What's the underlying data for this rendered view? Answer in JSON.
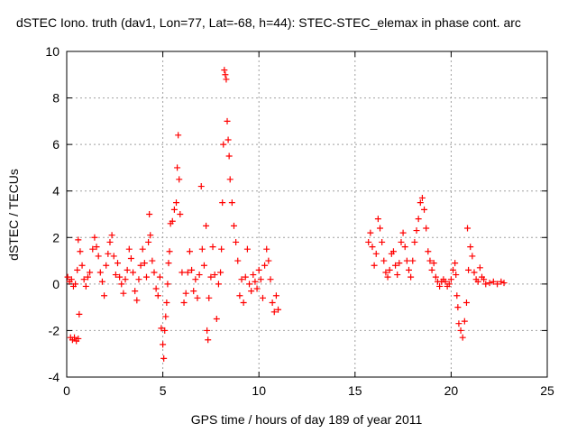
{
  "chart_data": {
    "type": "scatter",
    "title": "dSTEC Iono. truth (dav1, Lon=77, Lat=-68, h=44): STEC-STEC_elemax in phase cont. arc",
    "xlabel": "GPS time / hours of day 189 of year 2011",
    "ylabel": "dSTEC  / TECUs",
    "xlim": [
      0,
      25
    ],
    "ylim": [
      -4,
      10
    ],
    "xticks": [
      0,
      5,
      10,
      15,
      20,
      25
    ],
    "yticks": [
      -4,
      -2,
      0,
      2,
      4,
      6,
      8,
      10
    ],
    "xtick_labels": [
      "0",
      "5",
      "10",
      "15",
      "20",
      "25"
    ],
    "ytick_labels": [
      "-4",
      "-2",
      "0",
      "2",
      "4",
      "6",
      "8",
      "10"
    ],
    "grid": true,
    "legend": "none",
    "marker": "+",
    "color": "#ff0000",
    "series": [
      {
        "points": [
          [
            0.05,
            0.3
          ],
          [
            0.15,
            0.1
          ],
          [
            0.25,
            0.2
          ],
          [
            0.35,
            -0.1
          ],
          [
            0.45,
            0.0
          ],
          [
            0.2,
            -2.3
          ],
          [
            0.3,
            -2.4
          ],
          [
            0.4,
            -2.3
          ],
          [
            0.5,
            -2.45
          ],
          [
            0.6,
            -2.35
          ],
          [
            0.55,
            0.6
          ],
          [
            0.6,
            1.9
          ],
          [
            0.7,
            1.4
          ],
          [
            0.8,
            0.8
          ],
          [
            0.9,
            0.2
          ],
          [
            1.0,
            -0.1
          ],
          [
            1.1,
            0.3
          ],
          [
            0.65,
            -1.3
          ],
          [
            1.2,
            0.5
          ],
          [
            1.35,
            1.5
          ],
          [
            1.45,
            2.0
          ],
          [
            1.55,
            1.6
          ],
          [
            1.65,
            1.2
          ],
          [
            1.75,
            0.5
          ],
          [
            1.85,
            0.1
          ],
          [
            1.95,
            -0.5
          ],
          [
            2.05,
            0.8
          ],
          [
            2.15,
            1.3
          ],
          [
            2.25,
            1.8
          ],
          [
            2.35,
            2.1
          ],
          [
            2.45,
            1.2
          ],
          [
            2.55,
            0.4
          ],
          [
            2.65,
            0.9
          ],
          [
            2.75,
            0.3
          ],
          [
            2.85,
            0.0
          ],
          [
            2.95,
            -0.4
          ],
          [
            3.05,
            0.2
          ],
          [
            3.15,
            0.6
          ],
          [
            3.25,
            1.5
          ],
          [
            3.35,
            1.1
          ],
          [
            3.45,
            0.5
          ],
          [
            3.55,
            -0.3
          ],
          [
            3.65,
            -0.7
          ],
          [
            3.75,
            0.2
          ],
          [
            3.85,
            0.8
          ],
          [
            3.95,
            1.5
          ],
          [
            4.05,
            0.9
          ],
          [
            4.15,
            0.3
          ],
          [
            4.25,
            1.8
          ],
          [
            4.3,
            3.0
          ],
          [
            4.35,
            2.1
          ],
          [
            4.45,
            1.0
          ],
          [
            4.55,
            0.5
          ],
          [
            4.65,
            -0.2
          ],
          [
            4.75,
            -0.5
          ],
          [
            4.85,
            0.3
          ],
          [
            4.92,
            -1.9
          ],
          [
            5.0,
            -2.6
          ],
          [
            5.05,
            -3.2
          ],
          [
            5.1,
            -2.0
          ],
          [
            5.15,
            -1.4
          ],
          [
            5.2,
            -0.8
          ],
          [
            5.25,
            0.0
          ],
          [
            5.3,
            0.9
          ],
          [
            5.35,
            1.4
          ],
          [
            5.4,
            2.6
          ],
          [
            5.5,
            2.7
          ],
          [
            5.6,
            3.2
          ],
          [
            5.7,
            3.5
          ],
          [
            5.75,
            5.0
          ],
          [
            5.8,
            6.4
          ],
          [
            5.85,
            4.5
          ],
          [
            5.9,
            3.0
          ],
          [
            6.0,
            0.5
          ],
          [
            6.1,
            -0.8
          ],
          [
            6.2,
            -0.4
          ],
          [
            6.3,
            0.5
          ],
          [
            6.4,
            1.4
          ],
          [
            6.5,
            0.6
          ],
          [
            6.6,
            -0.3
          ],
          [
            6.7,
            0.2
          ],
          [
            6.8,
            -0.6
          ],
          [
            6.9,
            0.4
          ],
          [
            7.0,
            4.2
          ],
          [
            7.05,
            1.5
          ],
          [
            7.15,
            0.8
          ],
          [
            7.25,
            2.5
          ],
          [
            7.3,
            -2.0
          ],
          [
            7.35,
            -2.4
          ],
          [
            7.4,
            -0.6
          ],
          [
            7.5,
            0.3
          ],
          [
            7.6,
            1.6
          ],
          [
            7.7,
            0.4
          ],
          [
            7.8,
            -1.5
          ],
          [
            7.9,
            0.0
          ],
          [
            8.0,
            0.5
          ],
          [
            8.05,
            1.5
          ],
          [
            8.1,
            3.5
          ],
          [
            8.15,
            6.0
          ],
          [
            8.2,
            9.2
          ],
          [
            8.25,
            9.0
          ],
          [
            8.3,
            8.8
          ],
          [
            8.35,
            7.0
          ],
          [
            8.4,
            6.2
          ],
          [
            8.45,
            5.5
          ],
          [
            8.5,
            4.5
          ],
          [
            8.6,
            3.5
          ],
          [
            8.7,
            2.5
          ],
          [
            8.8,
            1.8
          ],
          [
            8.9,
            1.0
          ],
          [
            9.0,
            -0.5
          ],
          [
            9.1,
            0.2
          ],
          [
            9.2,
            -0.8
          ],
          [
            9.3,
            0.3
          ],
          [
            9.4,
            1.5
          ],
          [
            9.5,
            0.0
          ],
          [
            9.6,
            -0.3
          ],
          [
            9.7,
            0.4
          ],
          [
            9.8,
            0.1
          ],
          [
            9.9,
            -0.2
          ],
          [
            10.0,
            0.6
          ],
          [
            10.1,
            0.2
          ],
          [
            10.2,
            -0.6
          ],
          [
            10.3,
            0.8
          ],
          [
            10.4,
            1.5
          ],
          [
            10.5,
            1.0
          ],
          [
            10.6,
            0.2
          ],
          [
            10.7,
            -0.8
          ],
          [
            10.8,
            -1.2
          ],
          [
            10.9,
            -0.5
          ],
          [
            11.0,
            -1.1
          ],
          [
            15.7,
            1.8
          ],
          [
            15.8,
            2.2
          ],
          [
            15.9,
            1.6
          ],
          [
            16.0,
            0.8
          ],
          [
            16.1,
            1.3
          ],
          [
            16.2,
            2.8
          ],
          [
            16.3,
            2.4
          ],
          [
            16.4,
            1.8
          ],
          [
            16.5,
            1.0
          ],
          [
            16.6,
            0.5
          ],
          [
            16.7,
            0.3
          ],
          [
            16.8,
            0.6
          ],
          [
            16.9,
            1.3
          ],
          [
            17.0,
            1.4
          ],
          [
            17.1,
            0.8
          ],
          [
            17.2,
            0.4
          ],
          [
            17.3,
            0.9
          ],
          [
            17.4,
            1.8
          ],
          [
            17.5,
            2.2
          ],
          [
            17.6,
            1.6
          ],
          [
            17.7,
            1.0
          ],
          [
            17.8,
            0.6
          ],
          [
            17.9,
            0.3
          ],
          [
            18.0,
            1.0
          ],
          [
            18.1,
            1.8
          ],
          [
            18.2,
            2.3
          ],
          [
            18.3,
            2.8
          ],
          [
            18.4,
            3.5
          ],
          [
            18.5,
            3.7
          ],
          [
            18.6,
            3.2
          ],
          [
            18.7,
            2.4
          ],
          [
            18.8,
            1.4
          ],
          [
            18.9,
            1.0
          ],
          [
            19.0,
            0.6
          ],
          [
            19.1,
            0.9
          ],
          [
            19.2,
            0.3
          ],
          [
            19.3,
            0.1
          ],
          [
            19.4,
            -0.1
          ],
          [
            19.5,
            0.1
          ],
          [
            19.6,
            0.2
          ],
          [
            19.7,
            0.1
          ],
          [
            19.8,
            -0.1
          ],
          [
            19.9,
            0.0
          ],
          [
            20.0,
            0.2
          ],
          [
            20.1,
            0.6
          ],
          [
            20.2,
            0.9
          ],
          [
            20.25,
            0.4
          ],
          [
            20.3,
            -0.5
          ],
          [
            20.35,
            -1.0
          ],
          [
            20.4,
            -1.7
          ],
          [
            20.5,
            -2.0
          ],
          [
            20.6,
            -2.3
          ],
          [
            20.7,
            -1.6
          ],
          [
            20.8,
            -0.8
          ],
          [
            20.85,
            2.4
          ],
          [
            20.9,
            0.6
          ],
          [
            21.0,
            1.6
          ],
          [
            21.1,
            1.2
          ],
          [
            21.2,
            0.5
          ],
          [
            21.3,
            0.2
          ],
          [
            21.4,
            0.1
          ],
          [
            21.5,
            0.7
          ],
          [
            21.6,
            0.3
          ],
          [
            21.7,
            0.2
          ],
          [
            21.8,
            0.0
          ],
          [
            22.0,
            0.05
          ],
          [
            22.2,
            0.1
          ],
          [
            22.4,
            0.0
          ],
          [
            22.6,
            0.1
          ],
          [
            22.75,
            0.05
          ]
        ]
      }
    ]
  }
}
